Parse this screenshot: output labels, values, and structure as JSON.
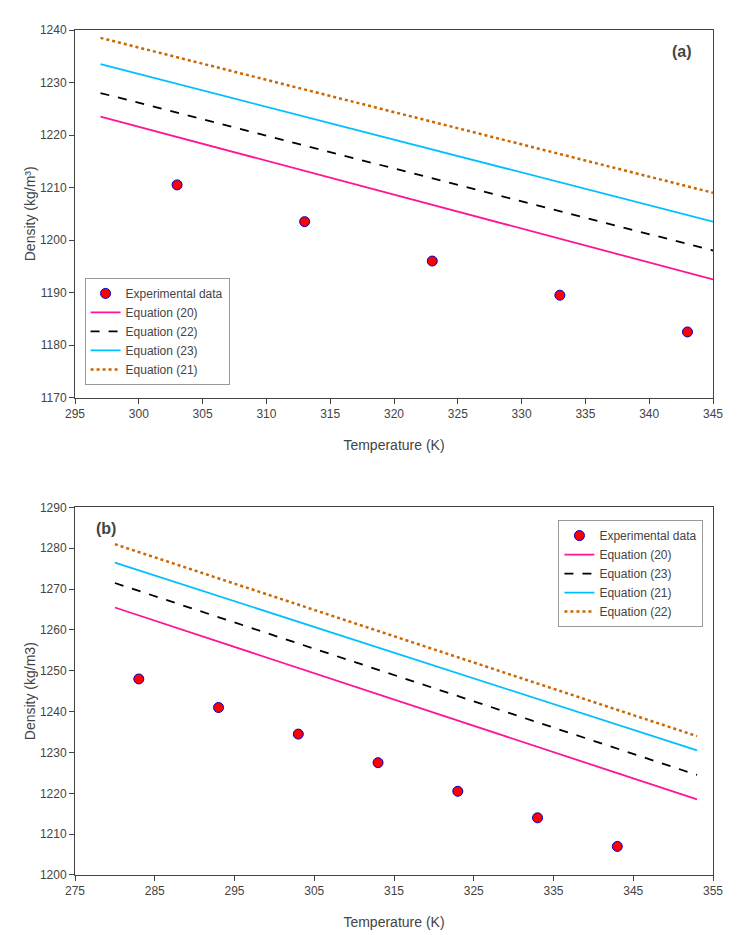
{
  "chart_data": [
    {
      "type": "line",
      "title": "(a)",
      "x_label": "Temperature (K)",
      "y_label": "Density (kg/m³)",
      "xlim": [
        295,
        345
      ],
      "ylim": [
        1170,
        1240
      ],
      "xticks": [
        295,
        300,
        305,
        310,
        315,
        320,
        325,
        330,
        335,
        340,
        345
      ],
      "yticks": [
        1170,
        1180,
        1190,
        1200,
        1210,
        1220,
        1230,
        1240
      ],
      "grid": false,
      "legend": "lower left",
      "series": [
        {
          "name": "Equation (20)",
          "type": "line",
          "color": "#ff1493",
          "line_style": "solid",
          "x": [
            297,
            345
          ],
          "values": [
            1223.5,
            1192.5
          ]
        },
        {
          "name": "Equation (22)",
          "type": "line",
          "color": "#000000",
          "line_style": "dashed",
          "x": [
            297,
            345
          ],
          "values": [
            1228.0,
            1198.0
          ]
        },
        {
          "name": "Equation (23)",
          "type": "line",
          "color": "#00bfff",
          "line_style": "solid",
          "x": [
            297,
            345
          ],
          "values": [
            1233.5,
            1203.5
          ]
        },
        {
          "name": "Equation (21)",
          "type": "line",
          "color": "#cc6600",
          "line_style": "dotted",
          "x": [
            297,
            345
          ],
          "values": [
            1238.5,
            1209.0
          ]
        },
        {
          "name": "Experimental data",
          "type": "scatter",
          "color": "#ff0000",
          "marker": "circle",
          "x": [
            303,
            313,
            323,
            333,
            343
          ],
          "values": [
            1210.5,
            1203.5,
            1196,
            1189.5,
            1182.5
          ]
        }
      ]
    },
    {
      "type": "line",
      "title": "(b)",
      "x_label": "Temperature (K)",
      "y_label": "Density (kg/m3)",
      "xlim": [
        275,
        355
      ],
      "ylim": [
        1200,
        1290
      ],
      "xticks": [
        275,
        285,
        295,
        305,
        315,
        325,
        335,
        345,
        355
      ],
      "yticks": [
        1200,
        1210,
        1220,
        1230,
        1240,
        1250,
        1260,
        1270,
        1280,
        1290
      ],
      "grid": false,
      "legend": "upper right",
      "series": [
        {
          "name": "Equation (20)",
          "type": "line",
          "color": "#ff1493",
          "line_style": "solid",
          "x": [
            280,
            353
          ],
          "values": [
            1265.5,
            1218.5
          ]
        },
        {
          "name": "Equation (23)",
          "type": "line",
          "color": "#000000",
          "line_style": "dashed",
          "x": [
            280,
            353
          ],
          "values": [
            1271.5,
            1224.5
          ]
        },
        {
          "name": "Equation (21)",
          "type": "line",
          "color": "#00bfff",
          "line_style": "solid",
          "x": [
            280,
            353
          ],
          "values": [
            1276.5,
            1230.5
          ]
        },
        {
          "name": "Equation (22)",
          "type": "line",
          "color": "#cc6600",
          "line_style": "dotted",
          "x": [
            280,
            353
          ],
          "values": [
            1281.0,
            1234.0
          ]
        },
        {
          "name": "Experimental data",
          "type": "scatter",
          "color": "#ff0000",
          "marker": "circle",
          "x": [
            283,
            293,
            303,
            313,
            323,
            333,
            343
          ],
          "values": [
            1248,
            1241,
            1234.5,
            1227.5,
            1220.5,
            1214,
            1207
          ]
        }
      ]
    }
  ]
}
